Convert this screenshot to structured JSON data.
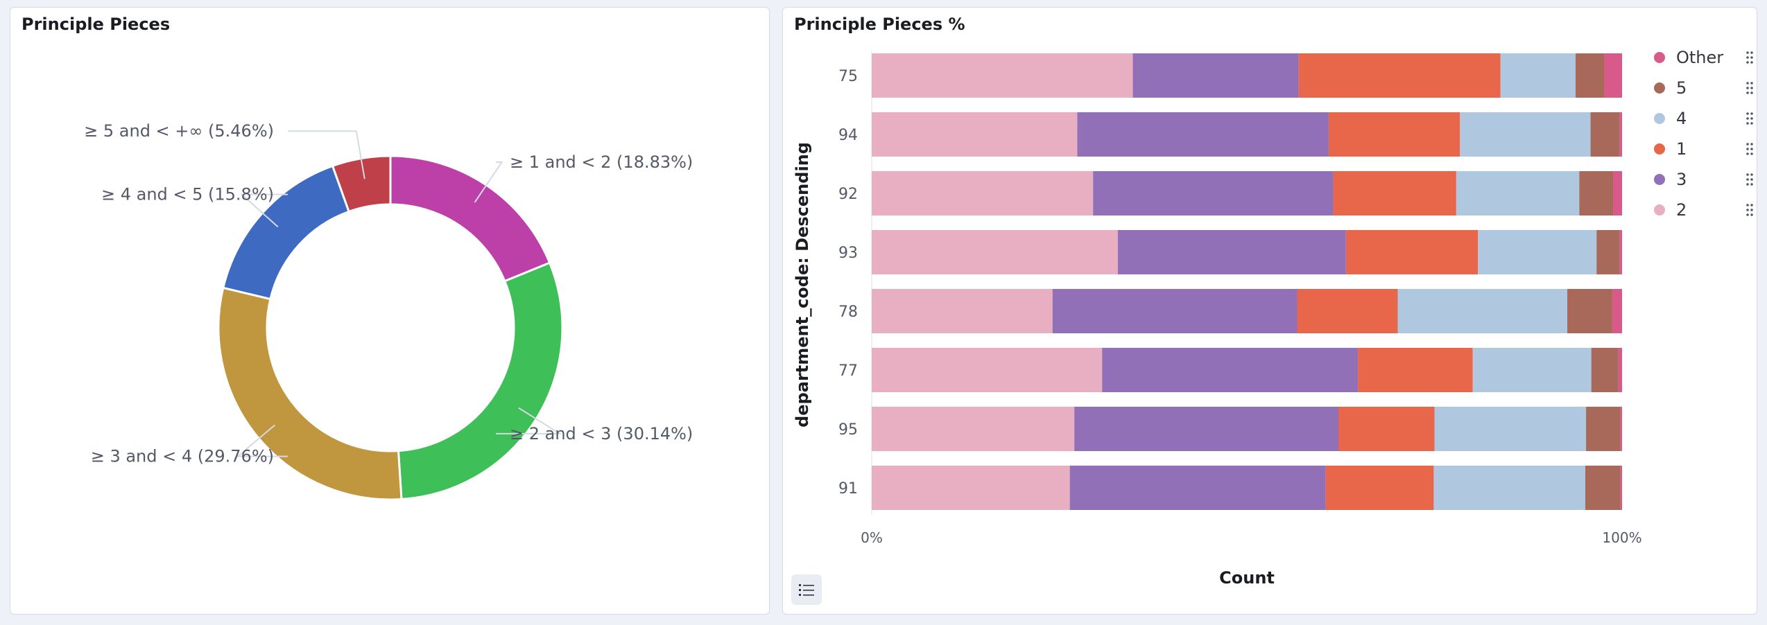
{
  "panels": {
    "left_title": "Principle Pieces",
    "right_title": "Principle Pieces %"
  },
  "chart_data": [
    {
      "type": "pie",
      "title": "Principle Pieces",
      "donut": true,
      "slices": [
        {
          "label": "≥ 1 and < 2 (18.83%)",
          "value": 18.83,
          "color": "#bd3fa8"
        },
        {
          "label": "≥ 2 and < 3 (30.14%)",
          "value": 30.14,
          "color": "#3fbf57"
        },
        {
          "label": "≥ 3 and < 4 (29.76%)",
          "value": 29.76,
          "color": "#c0963e"
        },
        {
          "label": "≥ 4 and < 5 (15.8%)",
          "value": 15.8,
          "color": "#3e6ac1"
        },
        {
          "label": "≥ 5 and < +∞ (5.46%)",
          "value": 5.46,
          "color": "#c0404a"
        }
      ]
    },
    {
      "type": "bar",
      "orientation": "horizontal",
      "stacked": "percent",
      "title": "Principle Pieces %",
      "ylabel": "department_code: Descending",
      "xlabel": "Count",
      "x_ticks": [
        "0%",
        "100%"
      ],
      "categories": [
        "75",
        "94",
        "92",
        "93",
        "78",
        "77",
        "95",
        "91"
      ],
      "series": [
        {
          "name": "2",
          "color": "#e8afc2",
          "values": [
            34.8,
            27.4,
            29.5,
            32.8,
            24.1,
            30.7,
            27.0,
            26.4
          ]
        },
        {
          "name": "3",
          "color": "#9270b7",
          "values": [
            22.1,
            33.5,
            32.0,
            30.4,
            32.6,
            34.1,
            35.2,
            34.1
          ]
        },
        {
          "name": "1",
          "color": "#e8664a",
          "values": [
            26.9,
            17.5,
            16.4,
            17.6,
            13.4,
            15.3,
            12.8,
            14.4
          ]
        },
        {
          "name": "4",
          "color": "#b0c8df",
          "values": [
            10.0,
            17.4,
            16.4,
            15.8,
            22.6,
            15.8,
            20.2,
            20.2
          ]
        },
        {
          "name": "5",
          "color": "#a8695a",
          "values": [
            3.8,
            3.9,
            4.5,
            3.1,
            6.0,
            3.6,
            4.6,
            4.7
          ]
        },
        {
          "name": "Other",
          "color": "#d75a8b",
          "values": [
            2.4,
            0.3,
            1.2,
            0.3,
            1.3,
            0.5,
            0.2,
            0.2
          ]
        }
      ],
      "legend": [
        "Other",
        "5",
        "4",
        "1",
        "3",
        "2"
      ],
      "legend_position": "top-right"
    }
  ]
}
